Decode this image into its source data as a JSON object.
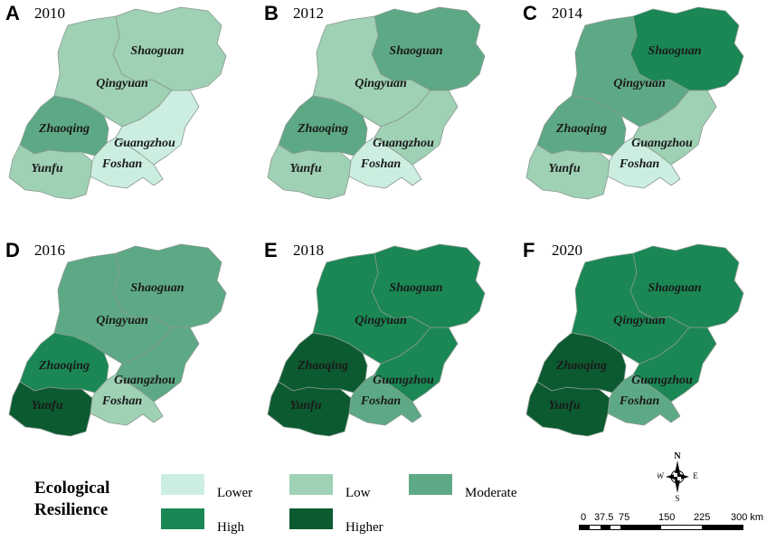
{
  "panels": [
    {
      "label": "A",
      "year": "2010",
      "colors": {
        "shaoguan": "#9fd1b4",
        "qingyuan": "#9fd1b4",
        "zhaoqing": "#5ea985",
        "yunfu": "#9fd1b4",
        "foshan": "#cceee0",
        "guangzhou": "#cceee0"
      }
    },
    {
      "label": "B",
      "year": "2012",
      "colors": {
        "shaoguan": "#5ea985",
        "qingyuan": "#9fd1b4",
        "zhaoqing": "#5ea985",
        "yunfu": "#9fd1b4",
        "foshan": "#cceee0",
        "guangzhou": "#9fd1b4"
      }
    },
    {
      "label": "C",
      "year": "2014",
      "colors": {
        "shaoguan": "#1a8754",
        "qingyuan": "#5ea985",
        "zhaoqing": "#5ea985",
        "yunfu": "#9fd1b4",
        "foshan": "#cceee0",
        "guangzhou": "#9fd1b4"
      }
    },
    {
      "label": "D",
      "year": "2016",
      "colors": {
        "shaoguan": "#5ea985",
        "qingyuan": "#5ea985",
        "zhaoqing": "#1a8754",
        "yunfu": "#0c5a30",
        "foshan": "#9fd1b4",
        "guangzhou": "#5ea985"
      }
    },
    {
      "label": "E",
      "year": "2018",
      "colors": {
        "shaoguan": "#1a8754",
        "qingyuan": "#1a8754",
        "zhaoqing": "#0c5a30",
        "yunfu": "#0c5a30",
        "foshan": "#5ea985",
        "guangzhou": "#1a8754"
      }
    },
    {
      "label": "F",
      "year": "2020",
      "colors": {
        "shaoguan": "#1a8754",
        "qingyuan": "#1a8754",
        "zhaoqing": "#0c5a30",
        "yunfu": "#0c5a30",
        "foshan": "#5ea985",
        "guangzhou": "#1a8754"
      }
    }
  ],
  "cities": {
    "shaoguan": "Shaoguan",
    "qingyuan": "Qingyuan",
    "zhaoqing": "Zhaoqing",
    "guangzhou": "Guangzhou",
    "yunfu": "Yunfu",
    "foshan": "Foshan"
  },
  "legend": {
    "title_line1": "Ecological",
    "title_line2": "Resilience",
    "items": [
      {
        "label": "Lower",
        "color": "#cceee0"
      },
      {
        "label": "Low",
        "color": "#9fd1b4"
      },
      {
        "label": "Moderate",
        "color": "#5ea985"
      },
      {
        "label": "High",
        "color": "#1a8754"
      },
      {
        "label": "Higher",
        "color": "#0c5a30"
      }
    ]
  },
  "compass": {
    "n": "N",
    "s": "S",
    "e": "E",
    "w": "W"
  },
  "scale": {
    "ticks": [
      "0",
      "37.5",
      "75",
      "150",
      "225",
      "300 km"
    ]
  }
}
